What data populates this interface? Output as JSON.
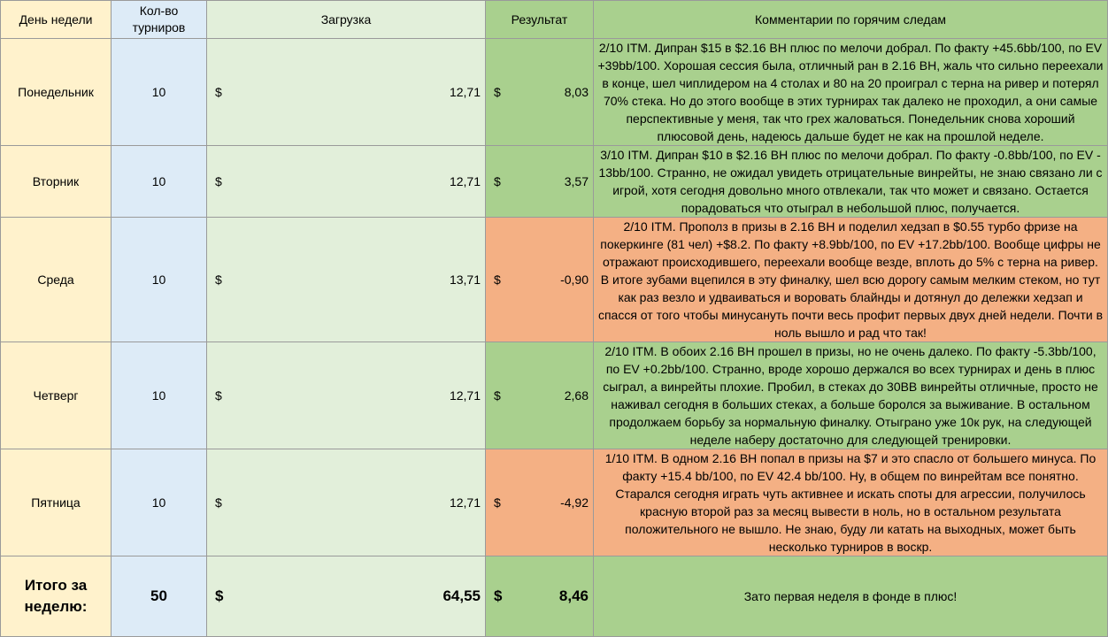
{
  "headers": {
    "day": "День недели",
    "count": "Кол-во турниров",
    "load": "Загрузка",
    "result": "Результат",
    "comment": "Комментарии по горячим следам"
  },
  "currency": "$",
  "rows": [
    {
      "day": "Понедельник",
      "count": "10",
      "load": "12,71",
      "result": "8,03",
      "result_status": "positive",
      "comment": "2/10 ITM. Дипран $15 в $2.16 BH плюс по мелочи добрал. По факту +45.6bb/100, по EV +39bb/100. Хорошая сессия была, отличный ран в 2.16 BH, жаль что сильно переехали в конце, шел чиплидером на 4 столах и 80 на 20 проиграл с терна на ривер и потерял 70% стека. Но до этого вообще в этих турнирах так далеко не проходил, а они самые перспективные у меня, так что грех жаловаться. Понедельник снова хороший плюсовой день, надеюсь дальше будет не как на прошлой неделе."
    },
    {
      "day": "Вторник",
      "count": "10",
      "load": "12,71",
      "result": "3,57",
      "result_status": "positive",
      "comment": "3/10 ITM. Дипран $10 в $2.16 BH плюс по мелочи добрал. По факту -0.8bb/100, по EV - 13bb/100. Странно, не ожидал увидеть отрицательные винрейты, не знаю связано ли с игрой, хотя сегодня довольно много отвлекали, так что может и связано. Остается порадоваться что отыграл в небольшой плюс, получается."
    },
    {
      "day": "Среда",
      "count": "10",
      "load": "13,71",
      "result": "-0,90",
      "result_status": "negative",
      "comment": "2/10 ITM. Прополз в призы в 2.16 BH и поделил хедзап в $0.55 турбо фризе на покеркинге (81 чел) +$8.2. По факту +8.9bb/100, по EV +17.2bb/100. Вообще цифры не отражают происходившего, переехали вообще везде, вплоть до 5% с терна на ривер. В итоге зубами вцепился в эту финалку, шел всю дорогу самым мелким стеком, но тут как раз везло и удваиваться и воровать блайнды и дотянул до дележки хедзап и спасся от того чтобы минусануть почти весь профит первых двух дней недели. Почти в ноль вышло и рад что так!"
    },
    {
      "day": "Четверг",
      "count": "10",
      "load": "12,71",
      "result": "2,68",
      "result_status": "positive",
      "comment": "2/10 ITM. В обоих 2.16 BH прошел в призы, но не очень далеко. По факту -5.3bb/100, по EV +0.2bb/100. Странно, вроде хорошо держался во всех турнирах и день в плюс сыграл, а винрейты плохие. Пробил, в стеках до 30BB винрейты отличные, просто не наживал сегодня в больших стеках, а больше боролся за выживание. В остальном продолжаем борьбу за нормальную финалку. Отыграно уже 10к рук, на следующей неделе наберу достаточно для следующей тренировки."
    },
    {
      "day": "Пятница",
      "count": "10",
      "load": "12,71",
      "result": "-4,92",
      "result_status": "negative",
      "comment": "1/10 ITM. В одном 2.16 BH попал в призы на $7 и это спасло от большего минуса. По факту +15.4 bb/100, по EV 42.4 bb/100. Ну, в общем по винрейтам все понятно. Старался сегодня играть чуть активнее и искать споты для агрессии, получилось красную второй раз за месяц вывести в ноль, но в остальном результата положительного не вышло. Не знаю, буду ли катать на выходных, может быть несколько турниров в воскр."
    }
  ],
  "total": {
    "label": "Итого за неделю:",
    "count": "50",
    "load": "64,55",
    "result": "8,46",
    "comment": "Зато первая неделя в фонде в плюс!"
  },
  "colors": {
    "day_bg": "#fff2cc",
    "count_bg": "#ddebf7",
    "load_bg": "#e2efda",
    "positive_bg": "#a9d08e",
    "negative_bg": "#f4b084"
  }
}
